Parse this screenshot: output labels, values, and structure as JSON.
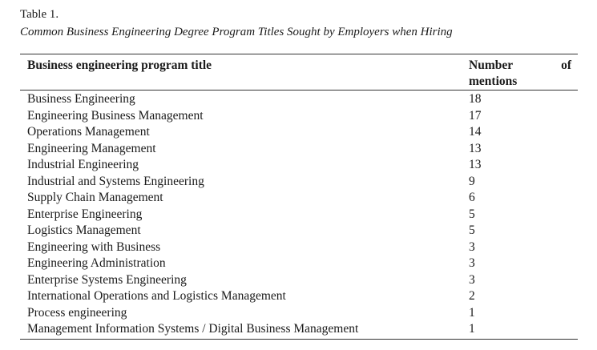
{
  "caption": {
    "number": "Table 1.",
    "title": "Common Business Engineering Degree Program Titles Sought by Employers when Hiring"
  },
  "table": {
    "headers": {
      "title": "Business engineering program title",
      "count_word1": "Number",
      "count_word2": "of",
      "count_line2": "mentions"
    },
    "rows": [
      {
        "title": "Business Engineering",
        "count": "18"
      },
      {
        "title": "Engineering Business Management",
        "count": "17"
      },
      {
        "title": "Operations Management",
        "count": "14"
      },
      {
        "title": "Engineering Management",
        "count": "13"
      },
      {
        "title": "Industrial Engineering",
        "count": "13"
      },
      {
        "title": "Industrial and Systems Engineering",
        "count": "9"
      },
      {
        "title": "Supply Chain Management",
        "count": "6"
      },
      {
        "title": "Enterprise Engineering",
        "count": "5"
      },
      {
        "title": "Logistics Management",
        "count": "5"
      },
      {
        "title": "Engineering with Business",
        "count": "3"
      },
      {
        "title": "Engineering Administration",
        "count": "3"
      },
      {
        "title": "Enterprise Systems Engineering",
        "count": "3"
      },
      {
        "title": "International Operations and Logistics Management",
        "count": "2"
      },
      {
        "title": "Process engineering",
        "count": "1"
      },
      {
        "title": "Management Information Systems / Digital Business Management",
        "count": "1"
      }
    ]
  }
}
